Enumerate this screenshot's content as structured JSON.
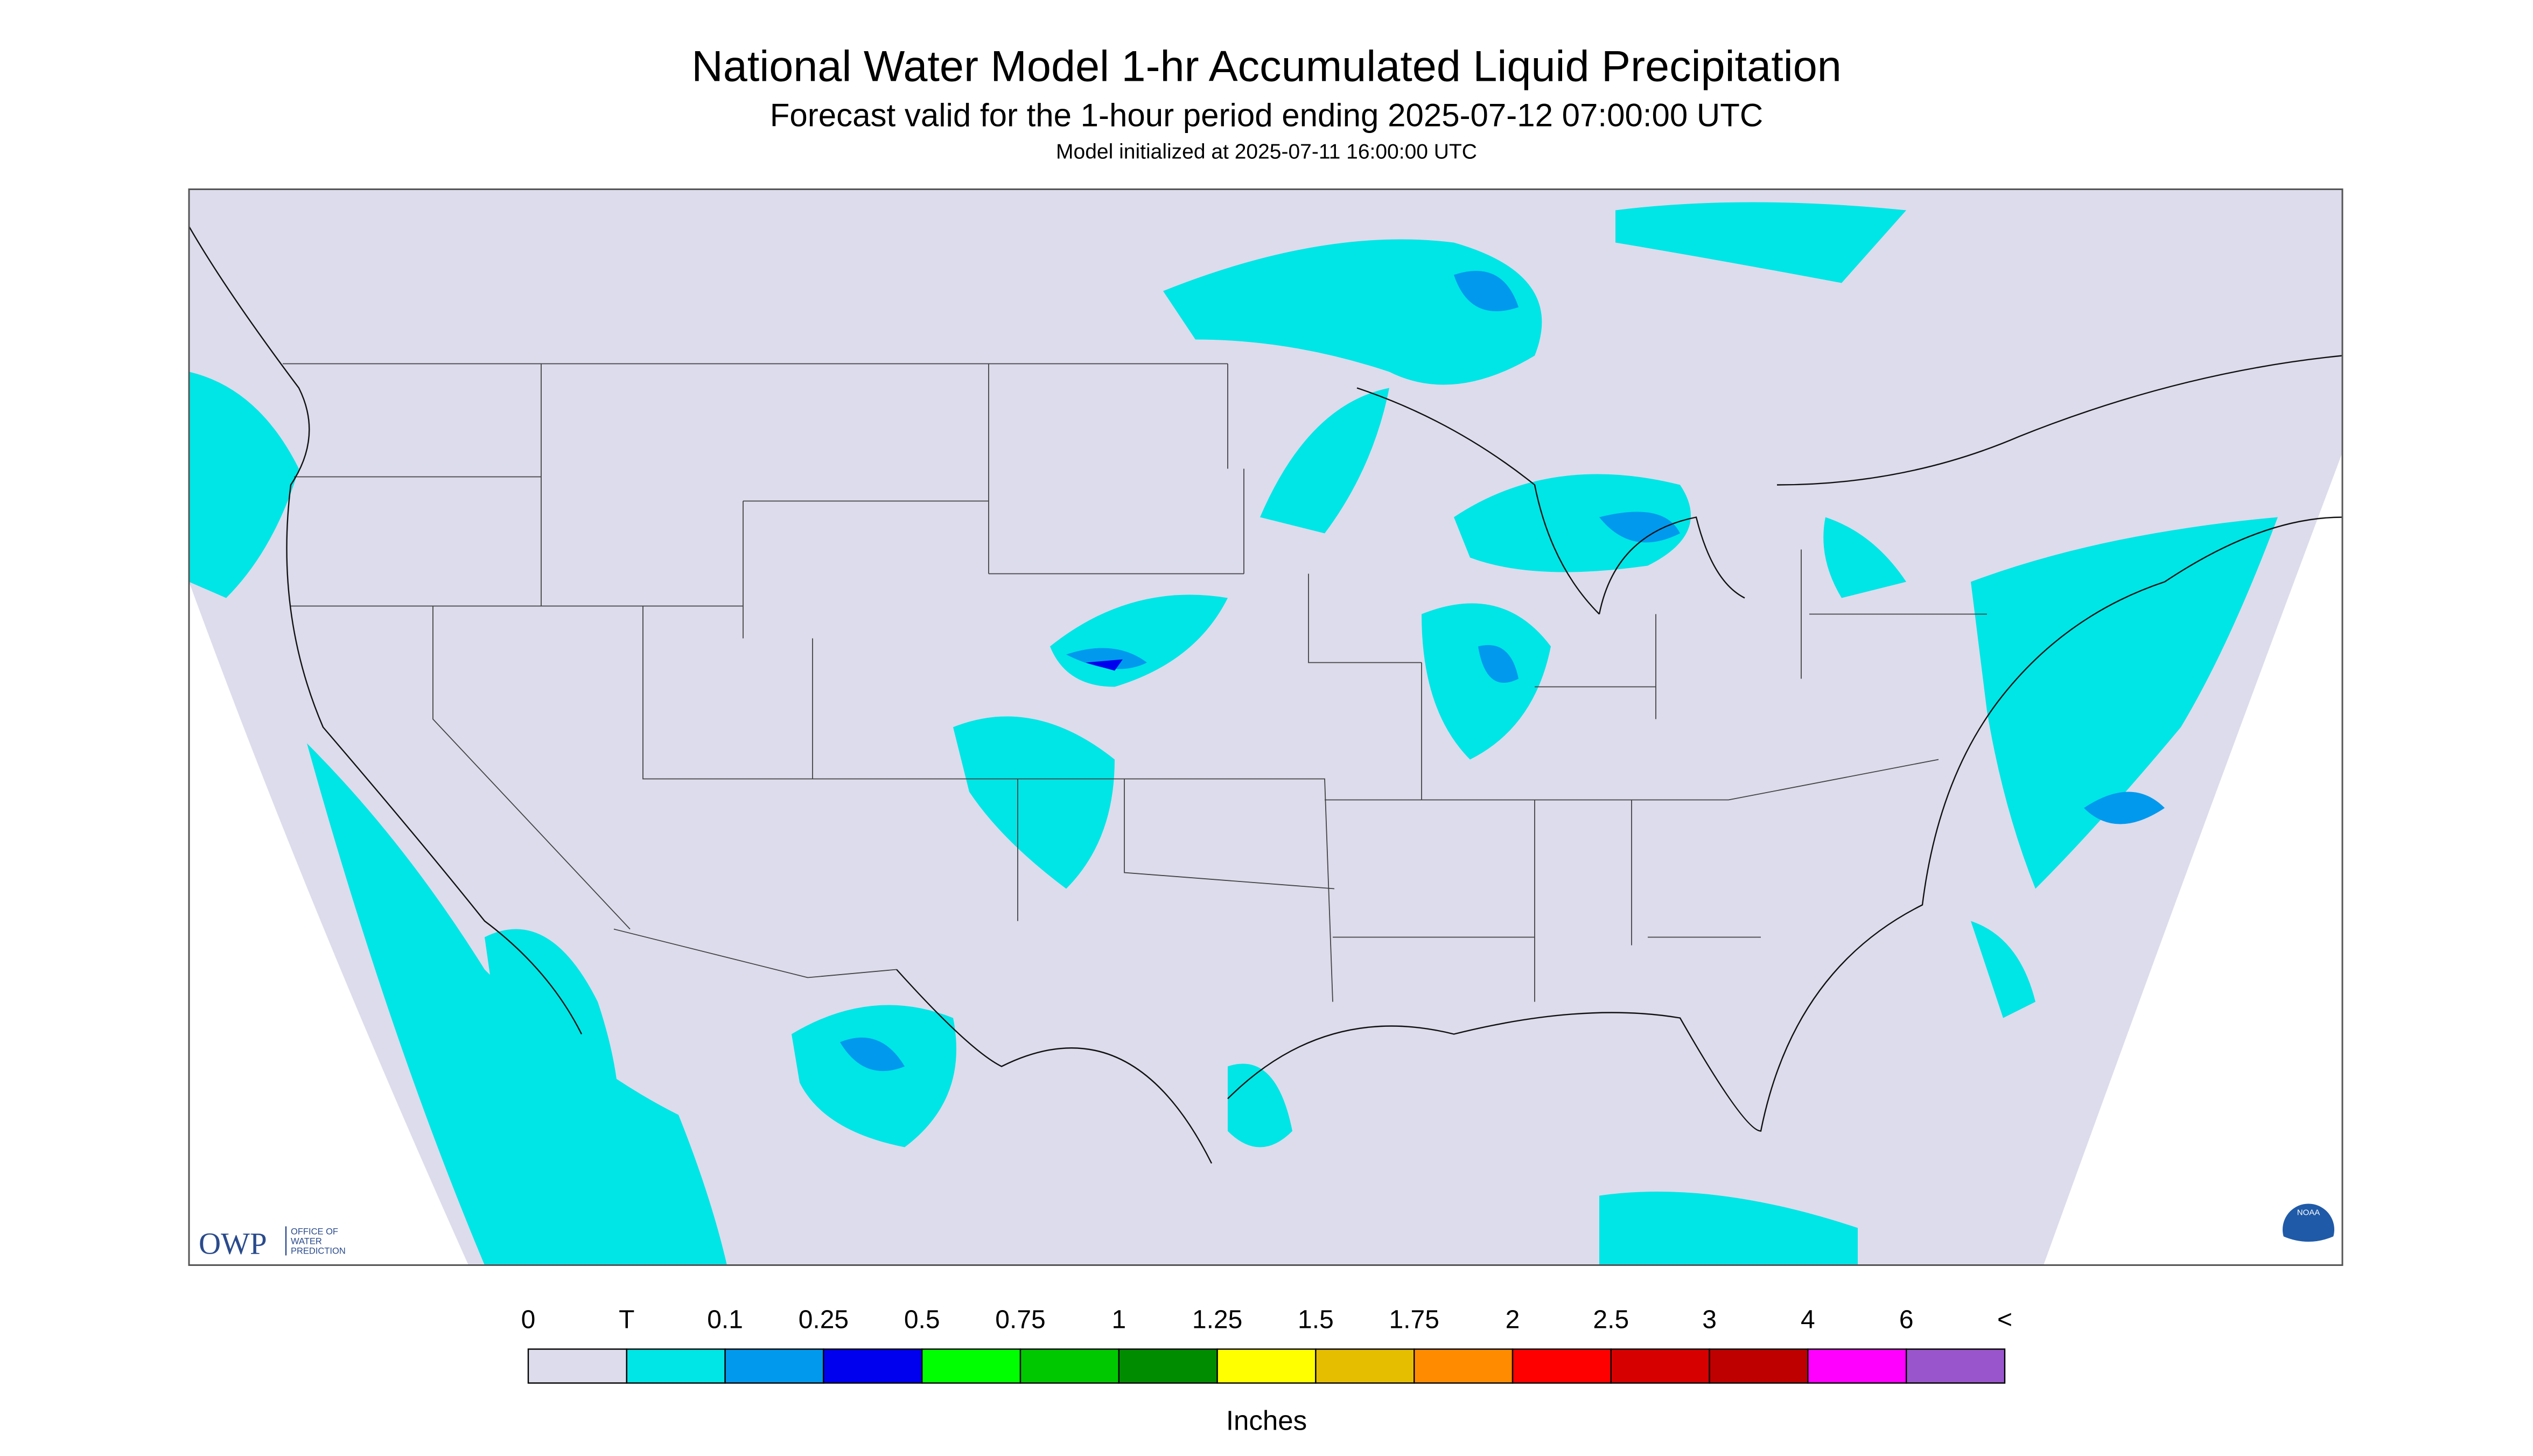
{
  "header": {
    "title": "National Water Model 1-hr Accumulated Liquid Precipitation",
    "subtitle": "Forecast valid for the 1-hour period ending 2025-07-12 07:00:00 UTC",
    "init": "Model initialized at 2025-07-11 16:00:00 UTC"
  },
  "legend": {
    "labels": [
      "0",
      "T",
      "0.1",
      "0.25",
      "0.5",
      "0.75",
      "1",
      "1.25",
      "1.5",
      "1.75",
      "2",
      "2.5",
      "3",
      "4",
      "6",
      "<"
    ],
    "colors": [
      "#dcdcec",
      "#00e5e5",
      "#0099ee",
      "#0000ee",
      "#00ff00",
      "#00c800",
      "#008c00",
      "#ffff00",
      "#e6be00",
      "#ff8c00",
      "#ff0000",
      "#d70000",
      "#be0000",
      "#ff00ff",
      "#9955cc"
    ],
    "unit": "Inches"
  },
  "logos": {
    "owp": "OWP",
    "owp_lines": [
      "OFFICE OF",
      "WATER",
      "PREDICTION"
    ],
    "noaa": "NOAA"
  }
}
